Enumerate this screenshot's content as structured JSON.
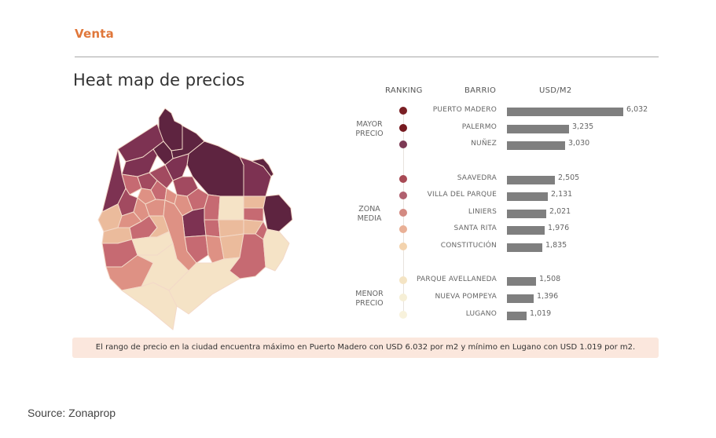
{
  "header": {
    "section": "Venta",
    "title": "Heat map de precios"
  },
  "columns": {
    "ranking": "RANKING",
    "barrio": "BARRIO",
    "usd": "USD/M2"
  },
  "groups": [
    {
      "line1": "MAYOR",
      "line2": "PRECIO"
    },
    {
      "line1": "ZONA",
      "line2": "MEDIA"
    },
    {
      "line1": "MENOR",
      "line2": "PRECIO"
    }
  ],
  "chart_data": {
    "type": "bar",
    "title": "Heat map de precios",
    "xlabel": "USD/M2",
    "ylabel": "BARRIO",
    "orientation": "horizontal",
    "xlim": [
      0,
      6032
    ],
    "categories": [
      "PUERTO MADERO",
      "PALERMO",
      "NUÑEZ",
      "SAAVEDRA",
      "VILLA DEL PARQUE",
      "LINIERS",
      "SANTA RITA",
      "CONSTITUCIÓN",
      "PARQUE AVELLANEDA",
      "NUEVA POMPEYA",
      "LUGANO"
    ],
    "values": [
      6032,
      3235,
      3030,
      2505,
      2131,
      2021,
      1976,
      1835,
      1508,
      1396,
      1019
    ],
    "value_labels": [
      "6,032",
      "3,235",
      "3,030",
      "2,505",
      "2,131",
      "2,021",
      "1,976",
      "1,835",
      "1,508",
      "1,396",
      "1,019"
    ],
    "groups": [
      "MAYOR PRECIO",
      "MAYOR PRECIO",
      "MAYOR PRECIO",
      "ZONA MEDIA",
      "ZONA MEDIA",
      "ZONA MEDIA",
      "ZONA MEDIA",
      "ZONA MEDIA",
      "MENOR PRECIO",
      "MENOR PRECIO",
      "MENOR PRECIO"
    ],
    "rank_colors": [
      "#7a1f24",
      "#761a20",
      "#7d3a55",
      "#a84a55",
      "#b0606f",
      "#d38a82",
      "#e9b096",
      "#f3d3ae",
      "#f4e4c4",
      "#f6efd6",
      "#f8f2dc"
    ],
    "bar_color": "#7f7f7f"
  },
  "map_colors": {
    "darkest": "#5e2440",
    "dark": "#7d3252",
    "mid_dark": "#a24a60",
    "mid": "#c66a72",
    "mid_light": "#de9184",
    "light": "#ebbb9c",
    "lightest": "#f5e3c6",
    "border": "#f3d9c8"
  },
  "note": "El rango de precio en la ciudad encuentra máximo en Puerto Madero con USD 6.032 por m2 y mínimo en Lugano con USD 1.019 por m2.",
  "source": "Source: Zonaprop"
}
